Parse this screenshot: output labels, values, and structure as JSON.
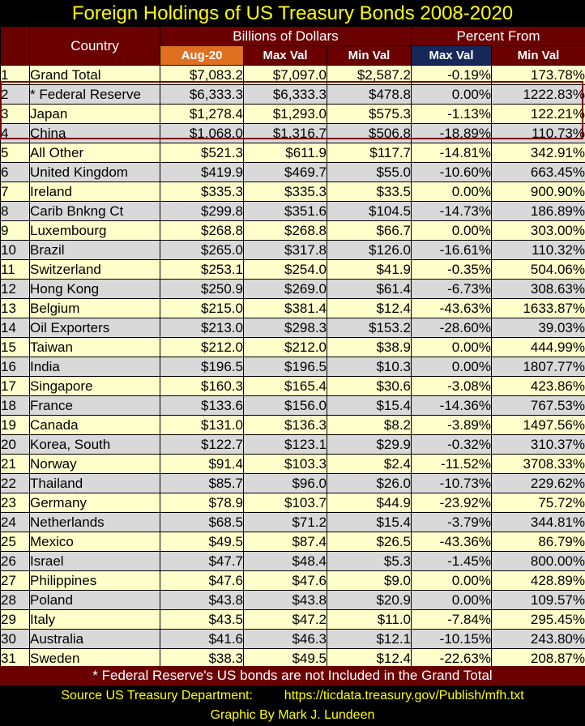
{
  "title": "Foreign Holdings of US Treasury Bonds 2008-2020",
  "header": {
    "country": "Country",
    "billions": "Billions of Dollars",
    "percent_from": "Percent From",
    "aug20": "Aug-20",
    "max_val": "Max Val",
    "min_val": "Min Val",
    "pct_max": "Max Val",
    "pct_min": "Min Val"
  },
  "footnote": "* Federal Reserve's US bonds are not Included in the Grand Total",
  "source_label": "Source US Treasury Department:",
  "source_url": "https://ticdata.treasury.gov/Publish/mfh.txt",
  "credit": "Graphic By Mark J. Lundeen",
  "colors": {
    "background": "#000000",
    "title": "#ffff00",
    "header": "#6b0000",
    "aug_header": "#e07020",
    "pct_max_header": "#16285a",
    "row_light": "#ffffcc",
    "row_gray": "#d9d9d9"
  },
  "chart_data": {
    "type": "table",
    "columns": [
      "#",
      "Country",
      "Aug-20",
      "Max Val",
      "Min Val",
      "Max Val",
      "Min Val"
    ],
    "rows": [
      [
        "1",
        "Grand Total",
        "$7,083.2",
        "$7,097.0",
        "$2,587.2",
        "-0.19%",
        "173.78%"
      ],
      [
        "2",
        "* Federal Reserve",
        "$6,333.3",
        "$6,333.3",
        "$478.8",
        "0.00%",
        "1222.83%"
      ],
      [
        "3",
        "Japan",
        "$1,278.4",
        "$1,293.0",
        "$575.3",
        "-1.13%",
        "122.21%"
      ],
      [
        "4",
        "China",
        "$1,068.0",
        "$1,316.7",
        "$506.8",
        "-18.89%",
        "110.73%"
      ],
      [
        "5",
        "All Other",
        "$521.3",
        "$611.9",
        "$117.7",
        "-14.81%",
        "342.91%"
      ],
      [
        "6",
        "United Kingdom",
        "$419.9",
        "$469.7",
        "$55.0",
        "-10.60%",
        "663.45%"
      ],
      [
        "7",
        "Ireland",
        "$335.3",
        "$335.3",
        "$33.5",
        "0.00%",
        "900.90%"
      ],
      [
        "8",
        "Carib Bnkng Ct",
        "$299.8",
        "$351.6",
        "$104.5",
        "-14.73%",
        "186.89%"
      ],
      [
        "9",
        "Luxembourg",
        "$268.8",
        "$268.8",
        "$66.7",
        "0.00%",
        "303.00%"
      ],
      [
        "10",
        "Brazil",
        "$265.0",
        "$317.8",
        "$126.0",
        "-16.61%",
        "110.32%"
      ],
      [
        "11",
        "Switzerland",
        "$253.1",
        "$254.0",
        "$41.9",
        "-0.35%",
        "504.06%"
      ],
      [
        "12",
        "Hong Kong",
        "$250.9",
        "$269.0",
        "$61.4",
        "-6.73%",
        "308.63%"
      ],
      [
        "13",
        "Belgium",
        "$215.0",
        "$381.4",
        "$12.4",
        "-43.63%",
        "1633.87%"
      ],
      [
        "14",
        "Oil Exporters",
        "$213.0",
        "$298.3",
        "$153.2",
        "-28.60%",
        "39.03%"
      ],
      [
        "15",
        "Taiwan",
        "$212.0",
        "$212.0",
        "$38.9",
        "0.00%",
        "444.99%"
      ],
      [
        "16",
        "India",
        "$196.5",
        "$196.5",
        "$10.3",
        "0.00%",
        "1807.77%"
      ],
      [
        "17",
        "Singapore",
        "$160.3",
        "$165.4",
        "$30.6",
        "-3.08%",
        "423.86%"
      ],
      [
        "18",
        "France",
        "$133.6",
        "$156.0",
        "$15.4",
        "-14.36%",
        "767.53%"
      ],
      [
        "19",
        "Canada",
        "$131.0",
        "$136.3",
        "$8.2",
        "-3.89%",
        "1497.56%"
      ],
      [
        "20",
        "Korea, South",
        "$122.7",
        "$123.1",
        "$29.9",
        "-0.32%",
        "310.37%"
      ],
      [
        "21",
        "Norway",
        "$91.4",
        "$103.3",
        "$2.4",
        "-11.52%",
        "3708.33%"
      ],
      [
        "22",
        "Thailand",
        "$85.7",
        "$96.0",
        "$26.0",
        "-10.73%",
        "229.62%"
      ],
      [
        "23",
        "Germany",
        "$78.9",
        "$103.7",
        "$44.9",
        "-23.92%",
        "75.72%"
      ],
      [
        "24",
        "Netherlands",
        "$68.5",
        "$71.2",
        "$15.4",
        "-3.79%",
        "344.81%"
      ],
      [
        "25",
        "Mexico",
        "$49.5",
        "$87.4",
        "$26.5",
        "-43.36%",
        "86.79%"
      ],
      [
        "26",
        "Israel",
        "$47.7",
        "$48.4",
        "$5.3",
        "-1.45%",
        "800.00%"
      ],
      [
        "27",
        "Philippines",
        "$47.6",
        "$47.6",
        "$9.0",
        "0.00%",
        "428.89%"
      ],
      [
        "28",
        "Poland",
        "$43.8",
        "$43.8",
        "$20.9",
        "0.00%",
        "109.57%"
      ],
      [
        "29",
        "Italy",
        "$43.5",
        "$47.2",
        "$11.0",
        "-7.84%",
        "295.45%"
      ],
      [
        "30",
        "Australia",
        "$41.6",
        "$46.3",
        "$12.1",
        "-10.15%",
        "243.80%"
      ],
      [
        "31",
        "Sweden",
        "$38.3",
        "$49.5",
        "$12.4",
        "-22.63%",
        "208.87%"
      ]
    ]
  }
}
